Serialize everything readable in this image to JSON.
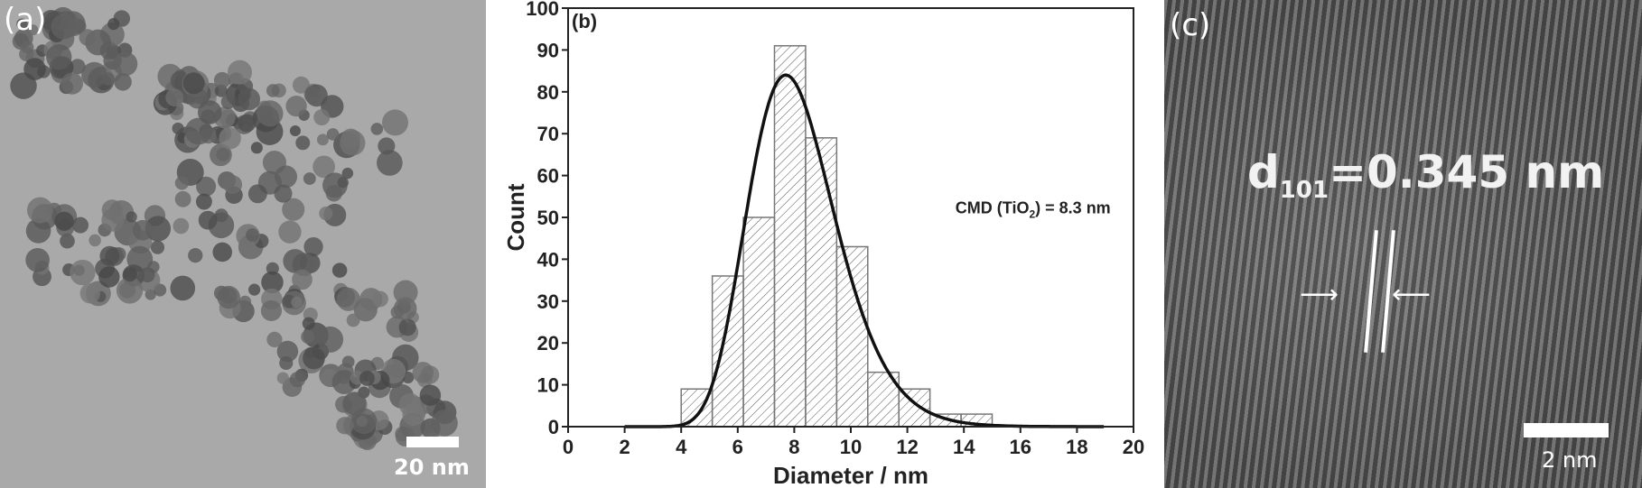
{
  "panel_a": {
    "label": "(a)",
    "scale_bar": "20 nm"
  },
  "panel_c": {
    "label": "(c)",
    "d_label": "d",
    "d_sub": "101",
    "d_value": "=0.345 nm",
    "scale_bar": "2 nm"
  },
  "chart_data": {
    "type": "bar",
    "panel_label": "(b)",
    "title": "",
    "xlabel": "Diameter / nm",
    "ylabel": "Count",
    "xlim": [
      0,
      20
    ],
    "ylim": [
      0,
      100
    ],
    "xticks": [
      0,
      2,
      4,
      6,
      8,
      10,
      12,
      14,
      16,
      18,
      20
    ],
    "yticks": [
      0,
      10,
      20,
      30,
      40,
      50,
      60,
      70,
      80,
      90,
      100
    ],
    "bins": [
      [
        4.0,
        5.1
      ],
      [
        5.1,
        6.2
      ],
      [
        6.2,
        7.3
      ],
      [
        7.3,
        8.4
      ],
      [
        8.4,
        9.5
      ],
      [
        9.5,
        10.6
      ],
      [
        10.6,
        11.7
      ],
      [
        11.7,
        12.8
      ],
      [
        12.8,
        13.9
      ],
      [
        13.9,
        15.0
      ]
    ],
    "values": [
      9,
      36,
      50,
      91,
      69,
      43,
      13,
      9,
      3,
      3
    ],
    "fit": {
      "type": "lognormal",
      "peak_x": 7.7,
      "peak_y": 84
    },
    "annotation": {
      "text_pre": "CMD (TiO",
      "text_sub": "2",
      "text_post": ") = 8.3 nm"
    },
    "colors": {
      "bar_edge": "#777777",
      "hatch": "#555555",
      "fit": "#111111"
    }
  }
}
